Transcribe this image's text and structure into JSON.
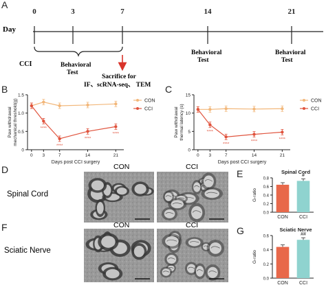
{
  "panel_a": {
    "letter": "A",
    "day_label": "Day",
    "timeline_days": [
      "0",
      "3",
      "7",
      "14",
      "21"
    ],
    "cci_label": "CCI",
    "behavioral_test": "Behavioral Test",
    "sacrifice_label": "Sacrifice for",
    "sacrifice_methods": "IF、scRNA-seq、 TEM",
    "colors": {
      "line": "#222222",
      "arrow": "#d9342b"
    }
  },
  "panel_letters": {
    "b": "B",
    "c": "C",
    "d": "D",
    "e": "E",
    "f": "F",
    "g": "G"
  },
  "micrographs": {
    "con_label": "CON",
    "cci_label": "CCI",
    "row_spinal": "Spinal Cord",
    "row_sciatic": "Sciatic Nerve"
  },
  "chart_data": [
    {
      "type": "line",
      "panel": "B",
      "x": [
        0,
        3,
        7,
        14,
        21
      ],
      "xlabel": "Days post CCI surgery",
      "ylabel": "Paw withdrawal mechanical threshold(g)",
      "ylim": [
        0,
        1.5
      ],
      "yticks": [
        "0",
        "0.5",
        "1.0",
        "1.5"
      ],
      "legend_position": "right",
      "series": [
        {
          "name": "CON",
          "values": [
            1.2,
            1.3,
            1.2,
            1.22,
            1.25
          ],
          "color": "#f2b77a"
        },
        {
          "name": "CCI",
          "values": [
            1.2,
            0.78,
            0.3,
            0.5,
            0.63
          ],
          "color": "#e0533d",
          "annotations": [
            "",
            "****",
            "****",
            "****",
            "****"
          ]
        }
      ]
    },
    {
      "type": "line",
      "panel": "C",
      "x": [
        0,
        3,
        7,
        14,
        21
      ],
      "xlabel": "Days post CCI surgery",
      "ylabel": "Paw withdrawal thermal latency (s)",
      "ylim": [
        0,
        15
      ],
      "yticks": [
        "0",
        "5",
        "10",
        "15"
      ],
      "legend_position": "right",
      "series": [
        {
          "name": "CON",
          "values": [
            11,
            11,
            11.2,
            11.1,
            11.2
          ],
          "color": "#f2b77a"
        },
        {
          "name": "CCI",
          "values": [
            11,
            6.8,
            3.5,
            4.2,
            4.8
          ],
          "color": "#e0533d",
          "annotations": [
            "",
            "****",
            "****",
            "****",
            "****"
          ]
        }
      ]
    },
    {
      "type": "bar",
      "panel": "E",
      "title": "Spinal Cord",
      "categories": [
        "CON",
        "CCI"
      ],
      "values": [
        0.64,
        0.73
      ],
      "colors": [
        "#e8684a",
        "#8fd3cf"
      ],
      "ylabel": "G-ratio",
      "ylim": [
        0,
        0.8
      ],
      "yticks": [
        "0.0",
        "0.2",
        "0.4",
        "0.6",
        "0.8"
      ],
      "annotations": [
        "",
        "#"
      ]
    },
    {
      "type": "bar",
      "panel": "G",
      "title": "Sciatic Nerve",
      "categories": [
        "CON",
        "CCI"
      ],
      "values": [
        0.44,
        0.54
      ],
      "colors": [
        "#e8684a",
        "#8fd3cf"
      ],
      "ylabel": "G-ratio",
      "ylim": [
        0,
        0.6
      ],
      "yticks": [
        "0.0",
        "0.2",
        "0.4",
        "0.6"
      ],
      "annotations": [
        "",
        "##"
      ]
    }
  ]
}
